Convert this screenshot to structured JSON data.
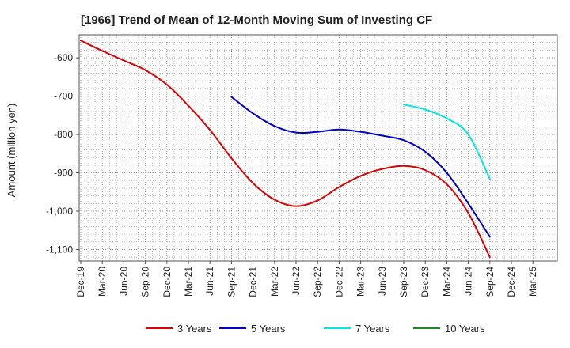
{
  "chart_data": {
    "type": "line",
    "title": "[1966]  Trend of Mean of 12-Month Moving Sum of Investing CF",
    "xlabel": "",
    "ylabel": "Amount (million yen)",
    "ylim": [
      -1130,
      -540
    ],
    "yticks": [
      -600,
      -700,
      -800,
      -900,
      -1000,
      -1100
    ],
    "ytick_labels": [
      "-600",
      "-700",
      "-800",
      "-900",
      "-1,000",
      "-1,100"
    ],
    "categories": [
      "Dec-19",
      "Mar-20",
      "Jun-20",
      "Sep-20",
      "Dec-20",
      "Mar-21",
      "Jun-21",
      "Sep-21",
      "Dec-21",
      "Mar-22",
      "Jun-22",
      "Sep-22",
      "Dec-22",
      "Mar-23",
      "Jun-23",
      "Sep-23",
      "Dec-23",
      "Mar-24",
      "Jun-24",
      "Sep-24",
      "Dec-24",
      "Mar-25"
    ],
    "grid": true,
    "legend_position": "bottom",
    "series": [
      {
        "name": "3 Years",
        "color": "#dd0000",
        "values": [
          -555,
          -582,
          -607,
          -632,
          -670,
          -725,
          -788,
          -862,
          -927,
          -970,
          -987,
          -972,
          -937,
          -908,
          -890,
          -882,
          -893,
          -930,
          -1005,
          -1120,
          null,
          null
        ]
      },
      {
        "name": "5 Years",
        "color": "#0000cc",
        "values": [
          null,
          null,
          null,
          null,
          null,
          null,
          null,
          -702,
          -745,
          -778,
          -795,
          -793,
          -787,
          -793,
          -803,
          -815,
          -845,
          -900,
          -980,
          -1067,
          null,
          null
        ]
      },
      {
        "name": "7 Years",
        "color": "#00e5e5",
        "values": [
          null,
          null,
          null,
          null,
          null,
          null,
          null,
          null,
          null,
          null,
          null,
          null,
          null,
          null,
          null,
          -722,
          -735,
          -758,
          -800,
          -916,
          null,
          null
        ]
      },
      {
        "name": "10 Years",
        "color": "#228822",
        "values": [
          null,
          null,
          null,
          null,
          null,
          null,
          null,
          null,
          null,
          null,
          null,
          null,
          null,
          null,
          null,
          null,
          null,
          null,
          null,
          null,
          null,
          null
        ]
      }
    ]
  }
}
